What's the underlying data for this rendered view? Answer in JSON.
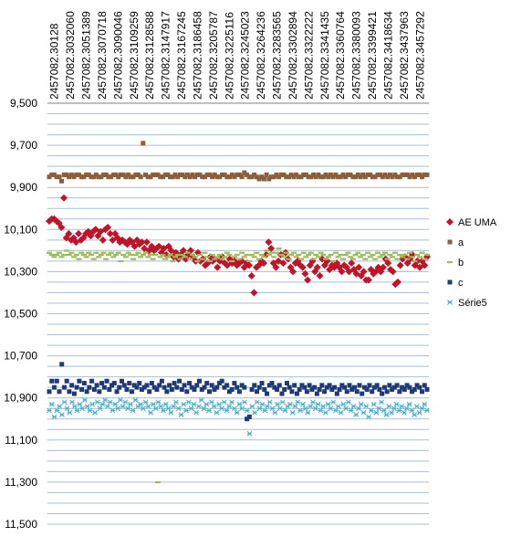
{
  "chart_data": {
    "type": "scatter",
    "title": "",
    "xlabel": "",
    "ylabel": "",
    "y_reversed": true,
    "ylim": [
      9.5,
      11.5
    ],
    "y_ticks": [
      "9,500",
      "9,700",
      "9,900",
      "10,100",
      "10,300",
      "10,500",
      "10,700",
      "10,900",
      "11,100",
      "11,300",
      "11,500"
    ],
    "x_tick_labels": [
      "2457082.30128",
      "2457082.3032060",
      "2457082.3051389",
      "2457082.3070718",
      "2457082.3090046",
      "2457082.3109259",
      "2457082.3128588",
      "2457082.3147917",
      "2457082.3167245",
      "2457082.3186458",
      "2457082.3205787",
      "2457082.3225116",
      "2457082.3245023",
      "2457082.3264236",
      "2457082.3283565",
      "2457082.3302894",
      "2457082.3322222",
      "2457082.3341435",
      "2457082.3360764",
      "2457082.3380093",
      "2457082.3399421",
      "2457082.3418634",
      "2457082.3437963",
      "2457082.3457292"
    ],
    "grid": "horizontal",
    "legend_position": "right",
    "series": [
      {
        "name": "AE UMA",
        "marker": "diamond",
        "color": "#c0142b",
        "values": [
          10.06,
          10.05,
          10.05,
          10.06,
          10.07,
          10.09,
          9.95,
          10.14,
          10.12,
          10.15,
          10.14,
          10.16,
          10.12,
          10.15,
          10.14,
          10.12,
          10.11,
          10.13,
          10.11,
          10.1,
          10.13,
          10.11,
          10.15,
          10.1,
          10.09,
          10.12,
          10.15,
          10.12,
          10.14,
          10.16,
          10.15,
          10.16,
          10.17,
          10.15,
          10.16,
          10.18,
          10.15,
          10.17,
          10.16,
          10.19,
          10.16,
          10.2,
          10.18,
          10.2,
          10.19,
          10.18,
          10.21,
          10.19,
          10.22,
          10.18,
          10.2,
          10.23,
          10.21,
          10.24,
          10.22,
          10.2,
          10.24,
          10.22,
          10.2,
          10.23,
          10.25,
          10.21,
          10.25,
          10.24,
          10.27,
          10.26,
          10.23,
          10.25,
          10.24,
          10.28,
          10.25,
          10.23,
          10.26,
          10.27,
          10.24,
          10.26,
          10.25,
          10.27,
          10.26,
          10.25,
          10.28,
          10.26,
          10.27,
          10.32,
          10.4,
          10.28,
          10.27,
          10.25,
          10.26,
          10.22,
          10.16,
          10.19,
          10.26,
          10.28,
          10.25,
          10.22,
          10.26,
          10.21,
          10.24,
          10.28,
          10.3,
          10.26,
          10.25,
          10.27,
          10.28,
          10.31,
          10.34,
          10.27,
          10.25,
          10.3,
          10.28,
          10.32,
          10.24,
          10.27,
          10.25,
          10.29,
          10.27,
          10.28,
          10.26,
          10.28,
          10.3,
          10.27,
          10.28,
          10.3,
          10.26,
          10.29,
          10.31,
          10.28,
          10.32,
          10.3,
          10.34,
          10.34,
          10.29,
          10.31,
          10.3,
          10.28,
          10.3,
          10.28,
          10.24,
          10.26,
          10.29,
          10.3,
          10.36,
          10.35,
          10.27,
          10.24,
          10.23,
          10.26,
          10.24,
          10.22,
          10.27,
          10.25,
          10.28,
          10.25,
          10.27,
          10.23
        ]
      },
      {
        "name": "a",
        "marker": "square",
        "color": "#8b5e3c",
        "values": [
          9.85,
          9.84,
          9.84,
          9.85,
          9.85,
          9.87,
          9.84,
          9.84,
          9.85,
          9.84,
          9.85,
          9.84,
          9.84,
          9.85,
          9.85,
          9.84,
          9.84,
          9.85,
          9.85,
          9.84,
          9.85,
          9.85,
          9.84,
          9.84,
          9.85,
          9.85,
          9.84,
          9.84,
          9.85,
          9.84,
          9.84,
          9.85,
          9.84,
          9.85,
          9.85,
          9.84,
          9.84,
          9.85,
          9.69,
          9.84,
          9.85,
          9.85,
          9.84,
          9.84,
          9.84,
          9.85,
          9.85,
          9.84,
          9.84,
          9.85,
          9.85,
          9.84,
          9.85,
          9.84,
          9.84,
          9.85,
          9.84,
          9.85,
          9.84,
          9.85,
          9.84,
          9.84,
          9.85,
          9.85,
          9.84,
          9.84,
          9.85,
          9.84,
          9.85,
          9.85,
          9.84,
          9.84,
          9.85,
          9.85,
          9.84,
          9.85,
          9.84,
          9.84,
          9.85,
          9.83,
          9.84,
          9.85,
          9.85,
          9.84,
          9.85,
          9.86,
          9.85,
          9.86,
          9.84,
          9.86,
          9.85,
          9.85,
          9.84,
          9.85,
          9.84,
          9.84,
          9.85,
          9.85,
          9.84,
          9.85,
          9.84,
          9.85,
          9.85,
          9.84,
          9.84,
          9.85,
          9.85,
          9.84,
          9.85,
          9.84,
          9.85,
          9.85,
          9.84,
          9.85,
          9.84,
          9.85,
          9.84,
          9.85,
          9.85,
          9.84,
          9.85,
          9.84,
          9.84,
          9.85,
          9.85,
          9.84,
          9.85,
          9.84,
          9.85,
          9.84,
          9.84,
          9.85,
          9.85,
          9.84,
          9.84,
          9.85,
          9.84,
          9.85,
          9.84,
          9.85,
          9.84,
          9.85,
          9.85,
          9.84,
          9.84,
          9.84,
          9.85,
          9.84,
          9.85,
          9.84,
          9.84,
          9.85,
          9.84,
          9.84
        ]
      },
      {
        "name": "b",
        "marker": "dash",
        "color": "#9bbb59",
        "values": [
          10.21,
          10.22,
          10.23,
          10.22,
          10.21,
          10.23,
          10.22,
          10.2,
          10.22,
          10.21,
          10.23,
          10.22,
          10.24,
          10.21,
          10.22,
          10.23,
          10.21,
          10.22,
          10.24,
          10.21,
          10.23,
          10.22,
          10.21,
          10.24,
          10.22,
          10.21,
          10.23,
          10.22,
          10.21,
          10.25,
          10.22,
          10.23,
          10.21,
          10.22,
          10.24,
          10.22,
          10.21,
          10.23,
          10.22,
          10.21,
          10.23,
          10.22,
          10.24,
          10.22,
          11.3,
          10.23,
          10.22,
          10.24,
          10.23,
          10.22,
          10.25,
          10.23,
          10.22,
          10.24,
          10.22,
          10.23,
          10.21,
          10.24,
          10.22,
          10.23,
          10.25,
          10.22,
          10.24,
          10.21,
          10.23,
          10.25,
          10.22,
          10.24,
          10.23,
          10.22,
          10.24,
          10.23,
          10.21,
          10.22,
          10.25,
          10.23,
          10.22,
          10.24,
          10.21,
          10.23,
          10.22,
          10.25,
          10.22,
          10.23,
          10.21,
          10.24,
          10.22,
          10.23,
          10.2,
          10.22,
          10.21,
          10.23,
          10.21,
          10.19,
          10.22,
          10.23,
          10.21,
          10.24,
          10.22,
          10.21,
          10.23,
          10.22,
          10.24,
          10.21,
          10.23,
          10.22,
          10.21,
          10.24,
          10.22,
          10.23,
          10.21,
          10.22,
          10.24,
          10.23,
          10.22,
          10.25,
          10.21,
          10.23,
          10.22,
          10.24,
          10.22,
          10.21,
          10.23,
          10.24,
          10.22,
          10.21,
          10.23,
          10.22,
          10.24,
          10.21,
          10.23,
          10.22,
          10.24,
          10.21,
          10.23,
          10.22,
          10.21,
          10.24,
          10.22,
          10.23,
          10.21,
          10.24,
          10.22,
          10.23,
          10.22,
          10.24,
          10.21,
          10.23,
          10.25,
          10.22,
          10.23,
          10.21,
          10.24,
          10.22
        ]
      },
      {
        "name": "c",
        "marker": "square",
        "color": "#1f3a7a",
        "values": [
          10.87,
          10.82,
          10.85,
          10.82,
          10.87,
          10.74,
          10.85,
          10.82,
          10.87,
          10.84,
          10.88,
          10.85,
          10.82,
          10.86,
          10.83,
          10.87,
          10.85,
          10.82,
          10.86,
          10.84,
          10.87,
          10.83,
          10.85,
          10.82,
          10.86,
          10.84,
          10.83,
          10.87,
          10.85,
          10.82,
          10.84,
          10.86,
          10.83,
          10.87,
          10.84,
          10.85,
          10.83,
          10.86,
          10.85,
          10.84,
          10.87,
          10.83,
          10.85,
          10.86,
          10.84,
          10.82,
          10.85,
          10.87,
          10.84,
          10.86,
          10.83,
          10.85,
          10.82,
          10.86,
          10.84,
          10.87,
          10.83,
          10.85,
          10.86,
          10.84,
          10.82,
          10.86,
          10.85,
          10.83,
          10.87,
          10.84,
          10.86,
          10.85,
          10.83,
          10.82,
          10.85,
          10.84,
          10.87,
          10.86,
          10.83,
          10.85,
          10.87,
          10.84,
          10.85,
          11.0,
          10.99,
          10.86,
          10.84,
          10.87,
          10.85,
          10.83,
          10.86,
          10.88,
          10.84,
          10.83,
          10.85,
          10.86,
          10.84,
          10.88,
          10.86,
          10.83,
          10.85,
          10.87,
          10.84,
          10.88,
          10.86,
          10.84,
          10.85,
          10.87,
          10.84,
          10.86,
          10.85,
          10.88,
          10.86,
          10.84,
          10.87,
          10.85,
          10.84,
          10.86,
          10.85,
          10.88,
          10.86,
          10.84,
          10.85,
          10.87,
          10.84,
          10.86,
          10.85,
          10.87,
          10.84,
          10.88,
          10.85,
          10.86,
          10.84,
          10.87,
          10.85,
          10.84,
          10.86,
          10.88,
          10.85,
          10.87,
          10.84,
          10.86,
          10.85,
          10.84,
          10.87,
          10.85,
          10.86,
          10.84,
          10.85,
          10.87,
          10.86,
          10.84,
          10.85,
          10.87,
          10.84,
          10.86
        ]
      },
      {
        "name": "Série5",
        "marker": "asterisk",
        "color": "#4bacc6",
        "values": [
          10.96,
          10.93,
          10.99,
          10.96,
          10.94,
          10.98,
          10.92,
          10.95,
          10.97,
          10.92,
          10.94,
          10.96,
          10.93,
          10.95,
          10.91,
          10.94,
          10.96,
          10.93,
          10.97,
          10.92,
          10.95,
          10.93,
          10.91,
          10.94,
          10.92,
          10.96,
          10.93,
          10.95,
          10.91,
          10.94,
          10.92,
          10.95,
          10.93,
          10.96,
          10.91,
          10.94,
          10.93,
          10.95,
          10.92,
          10.94,
          10.97,
          10.93,
          10.95,
          10.92,
          10.94,
          10.96,
          10.93,
          10.95,
          10.97,
          10.94,
          10.92,
          10.95,
          10.98,
          10.93,
          10.96,
          10.92,
          10.95,
          10.93,
          10.97,
          10.94,
          10.91,
          10.95,
          10.93,
          10.96,
          10.92,
          10.94,
          10.97,
          10.93,
          10.95,
          10.92,
          10.96,
          10.94,
          10.92,
          10.95,
          10.97,
          10.93,
          10.95,
          10.92,
          10.96,
          11.07,
          10.94,
          10.97,
          10.92,
          10.95,
          10.93,
          10.96,
          10.94,
          10.92,
          10.95,
          10.97,
          10.93,
          10.95,
          10.92,
          10.96,
          10.94,
          10.93,
          10.97,
          10.94,
          10.92,
          10.96,
          10.93,
          10.95,
          10.97,
          10.94,
          10.92,
          10.95,
          10.93,
          10.96,
          10.94,
          10.97,
          10.93,
          10.95,
          10.92,
          10.96,
          10.94,
          10.97,
          10.93,
          10.95,
          10.92,
          10.96,
          10.94,
          10.98,
          10.95,
          10.93,
          10.97,
          10.94,
          10.99,
          10.96,
          10.93,
          10.97,
          10.95,
          10.92,
          10.96,
          10.98,
          10.94,
          10.97,
          10.95,
          10.93,
          10.96,
          10.94,
          10.97,
          10.95,
          10.93,
          10.96,
          10.98,
          10.94,
          10.97,
          10.95,
          10.93,
          10.96
        ]
      }
    ]
  }
}
